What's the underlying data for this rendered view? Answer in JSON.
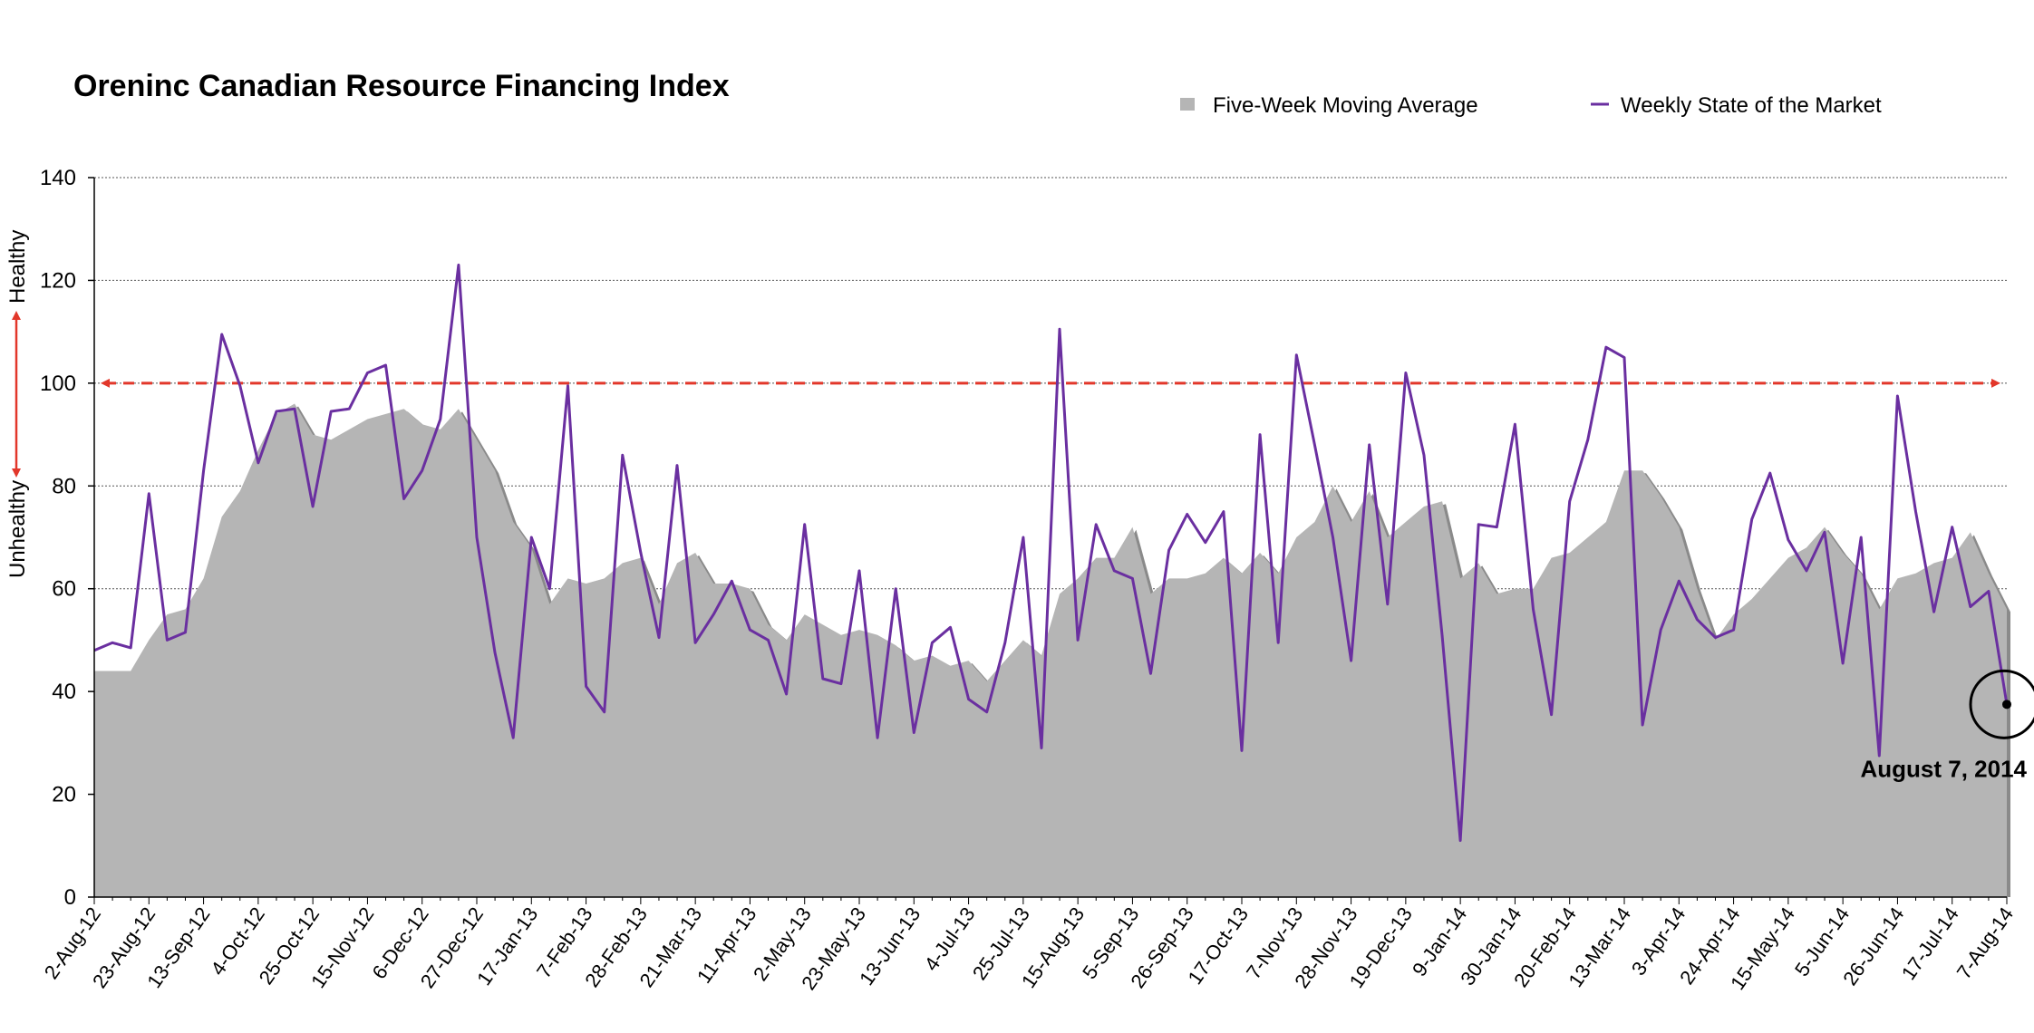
{
  "colors": {
    "area": "#b5b5b5",
    "area_shadow": "#8a8a8a",
    "line": "#6a2fa0",
    "threshold": "#e2372a",
    "grid": "#555555",
    "axis": "#000000"
  },
  "chart_data": {
    "type": "area",
    "title": "Oreninc Canadian Resource Financing Index",
    "ylim": [
      0,
      140
    ],
    "y_ticks": [
      0,
      20,
      40,
      60,
      80,
      100,
      120,
      140
    ],
    "grid": "horizontal dotted",
    "legend_position": "top-right",
    "y_side_labels": {
      "upper": "Healthy",
      "lower": "Unhealthy"
    },
    "threshold": {
      "value": 100,
      "style": "dashed",
      "color": "red"
    },
    "x_tick_labels": [
      "2-Aug-12",
      "23-Aug-12",
      "13-Sep-12",
      "4-Oct-12",
      "25-Oct-12",
      "15-Nov-12",
      "6-Dec-12",
      "27-Dec-12",
      "17-Jan-13",
      "7-Feb-13",
      "28-Feb-13",
      "21-Mar-13",
      "11-Apr-13",
      "2-May-13",
      "23-May-13",
      "13-Jun-13",
      "4-Jul-13",
      "25-Jul-13",
      "15-Aug-13",
      "5-Sep-13",
      "26-Sep-13",
      "17-Oct-13",
      "7-Nov-13",
      "28-Nov-13",
      "19-Dec-13",
      "9-Jan-14",
      "30-Jan-14",
      "20-Feb-14",
      "13-Mar-14",
      "3-Apr-14",
      "24-Apr-14",
      "15-May-14",
      "5-Jun-14",
      "26-Jun-14",
      "17-Jul-14",
      "7-Aug-14"
    ],
    "series": [
      {
        "name": "Five-Week Moving Average",
        "kind": "area",
        "values": [
          44,
          44,
          44,
          50,
          55,
          56,
          62,
          74,
          79,
          87,
          94,
          96,
          90,
          89,
          91,
          93,
          94,
          95,
          92,
          91,
          95,
          89,
          83,
          73,
          68,
          57,
          62,
          61,
          62,
          65,
          66,
          57,
          65,
          67,
          61,
          61,
          60,
          53,
          50,
          55,
          53,
          51,
          52,
          51,
          49,
          46,
          47,
          45,
          46,
          42,
          46,
          50,
          47,
          59,
          62,
          66,
          66,
          72,
          59,
          62,
          62,
          63,
          66,
          63,
          67,
          63,
          70,
          73,
          80,
          73,
          79,
          70,
          73,
          76,
          77,
          62,
          65,
          59,
          60,
          60,
          66,
          67,
          70,
          73,
          83,
          83,
          78,
          72,
          60,
          50,
          55,
          58,
          62,
          66,
          68,
          72,
          67,
          63,
          56,
          62,
          63,
          65,
          66,
          71,
          63,
          56
        ]
      },
      {
        "name": "Weekly State of the Market",
        "kind": "line",
        "values": [
          48,
          49.5,
          48.5,
          78.5,
          50,
          51.5,
          83,
          109.5,
          99.5,
          84.5,
          94.5,
          95,
          76,
          94.5,
          95,
          102,
          103.5,
          77.5,
          83,
          93,
          123,
          70,
          47.5,
          31,
          70,
          60,
          99.5,
          41,
          36,
          86,
          67,
          50.5,
          84,
          49.5,
          55,
          61.5,
          52,
          50,
          39.5,
          72.5,
          42.5,
          41.5,
          63.5,
          31,
          60,
          32,
          49.5,
          52.5,
          38.5,
          36,
          49.5,
          70,
          29,
          110.5,
          50,
          72.5,
          63.5,
          62,
          43.5,
          67.5,
          74.5,
          69,
          75,
          28.5,
          90,
          49.5,
          105.5,
          88,
          70,
          46,
          88,
          57,
          102,
          86,
          51,
          11,
          72.5,
          72,
          92,
          56,
          35.5,
          77,
          89,
          107,
          105,
          33.5,
          52,
          61.5,
          54,
          50.5,
          52,
          73.5,
          82.5,
          69.5,
          63.5,
          71,
          45.5,
          70,
          27.5,
          97.5,
          75,
          55.5,
          72,
          56.5,
          59.5,
          37.5
        ]
      }
    ],
    "annotation": {
      "label": "August 7, 2014"
    }
  }
}
